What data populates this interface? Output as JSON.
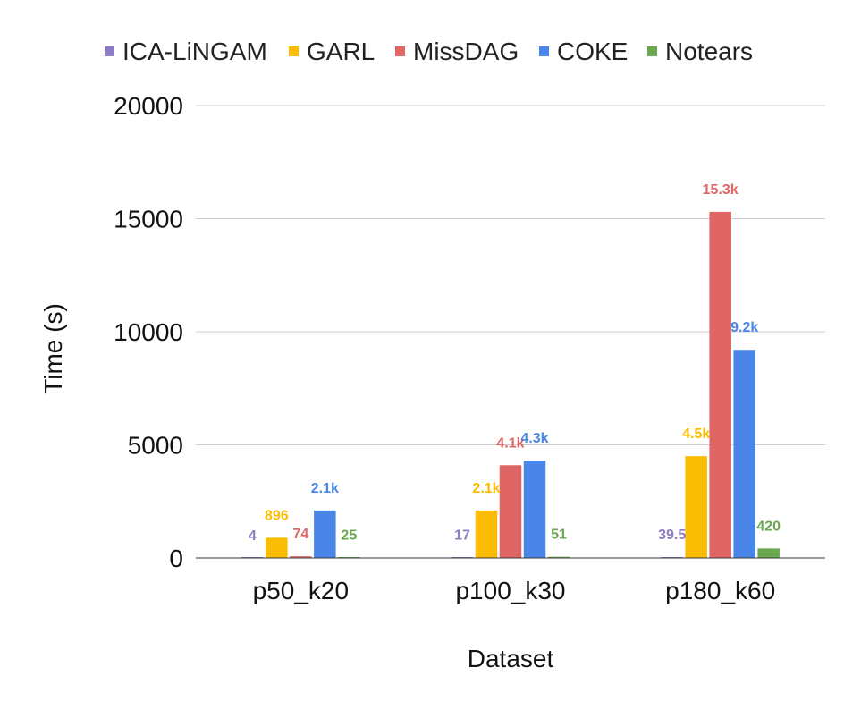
{
  "chart_data": {
    "type": "bar",
    "title": "",
    "xlabel": "Dataset",
    "ylabel": "Time (s)",
    "ylim": [
      0,
      20000
    ],
    "yticks": [
      0,
      5000,
      10000,
      15000,
      20000
    ],
    "grid": true,
    "legend_position": "top",
    "categories": [
      "p50_k20",
      "p100_k30",
      "p180_k60"
    ],
    "series": [
      {
        "name": "ICA-LiNGAM",
        "color": "#8e7cc3",
        "values": [
          4,
          17,
          39.5
        ],
        "labels": [
          "4",
          "17",
          "39.5"
        ]
      },
      {
        "name": "GARL",
        "color": "#fbbc04",
        "values": [
          896,
          2100,
          4500
        ],
        "labels": [
          "896",
          "2.1k",
          "4.5k"
        ]
      },
      {
        "name": "MissDAG",
        "color": "#e06666",
        "values": [
          74,
          4100,
          15300
        ],
        "labels": [
          "74",
          "4.1k",
          "15.3k"
        ]
      },
      {
        "name": "COKE",
        "color": "#4a86e8",
        "values": [
          2100,
          4300,
          9200
        ],
        "labels": [
          "2.1k",
          "4.3k",
          "9.2k"
        ]
      },
      {
        "name": "Notears",
        "color": "#6aa84f",
        "values": [
          25,
          51,
          420
        ],
        "labels": [
          "25",
          "51",
          "420"
        ]
      }
    ]
  }
}
